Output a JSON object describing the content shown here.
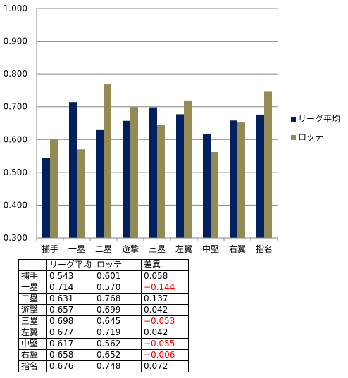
{
  "chart_data": {
    "type": "bar",
    "categories": [
      "捕手",
      "一塁",
      "二塁",
      "遊撃",
      "三塁",
      "左翼",
      "中堅",
      "右翼",
      "指名"
    ],
    "series": [
      {
        "name": "リーグ平均",
        "color": "#002060",
        "values": [
          0.543,
          0.714,
          0.631,
          0.657,
          0.698,
          0.677,
          0.617,
          0.658,
          0.676
        ]
      },
      {
        "name": "ロッテ",
        "color": "#948a54",
        "values": [
          0.601,
          0.57,
          0.768,
          0.699,
          0.645,
          0.719,
          0.562,
          0.652,
          0.748
        ]
      }
    ],
    "ylim": [
      0.3,
      1.0
    ],
    "yticks": [
      "0.300",
      "0.400",
      "0.500",
      "0.600",
      "0.700",
      "0.800",
      "0.900",
      "1.000"
    ],
    "grid": true,
    "legend_position": "right"
  },
  "table": {
    "headers": [
      "",
      "リーグ平均",
      "ロッテ",
      "差異"
    ],
    "rows": [
      [
        "捕手",
        "0.543",
        "0.601",
        "0.058"
      ],
      [
        "一塁",
        "0.714",
        "0.570",
        "−0.144"
      ],
      [
        "二塁",
        "0.631",
        "0.768",
        "0.137"
      ],
      [
        "遊撃",
        "0.657",
        "0.699",
        "0.042"
      ],
      [
        "三塁",
        "0.698",
        "0.645",
        "−0.053"
      ],
      [
        "左翼",
        "0.677",
        "0.719",
        "0.042"
      ],
      [
        "中堅",
        "0.617",
        "0.562",
        "−0.055"
      ],
      [
        "右翼",
        "0.658",
        "0.652",
        "−0.006"
      ],
      [
        "指名",
        "0.676",
        "0.748",
        "0.072"
      ]
    ]
  }
}
